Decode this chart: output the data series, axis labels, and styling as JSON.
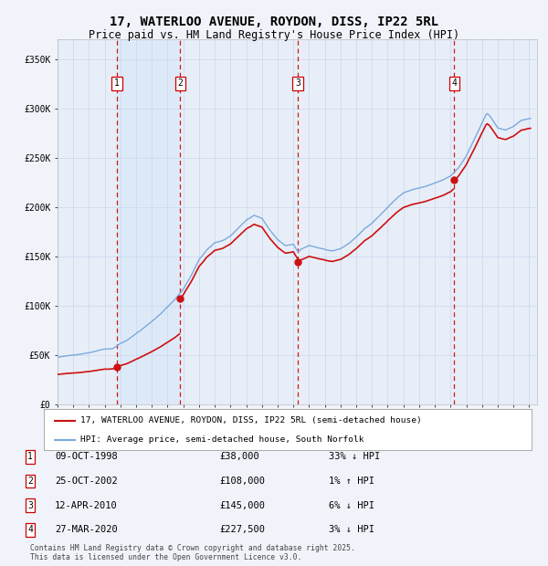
{
  "title": "17, WATERLOO AVENUE, ROYDON, DISS, IP22 5RL",
  "subtitle": "Price paid vs. HM Land Registry's House Price Index (HPI)",
  "title_fontsize": 10,
  "subtitle_fontsize": 8.5,
  "bg_color": "#f0f4fa",
  "plot_bg_color": "#e8eef8",
  "sale_dates_dec": [
    1998.77,
    2002.81,
    2010.27,
    2020.24
  ],
  "sale_prices": [
    38000,
    108000,
    145000,
    227500
  ],
  "sale_labels": [
    "1",
    "2",
    "3",
    "4"
  ],
  "annotations": [
    {
      "label": "1",
      "date": "09-OCT-1998",
      "price": "£38,000",
      "hpi": "33% ↓ HPI"
    },
    {
      "label": "2",
      "date": "25-OCT-2002",
      "price": "£108,000",
      "hpi": "1% ↑ HPI"
    },
    {
      "label": "3",
      "date": "12-APR-2010",
      "price": "£145,000",
      "hpi": "6% ↓ HPI"
    },
    {
      "label": "4",
      "date": "27-MAR-2020",
      "price": "£227,500",
      "hpi": "3% ↓ HPI"
    }
  ],
  "legend_line1": "17, WATERLOO AVENUE, ROYDON, DISS, IP22 5RL (semi-detached house)",
  "legend_line2": "HPI: Average price, semi-detached house, South Norfolk",
  "footer": "Contains HM Land Registry data © Crown copyright and database right 2025.\nThis data is licensed under the Open Government Licence v3.0.",
  "ylim": [
    0,
    370000
  ],
  "xlim_start": 1995.0,
  "xlim_end": 2025.5,
  "yticks": [
    0,
    50000,
    100000,
    150000,
    200000,
    250000,
    300000,
    350000
  ],
  "ytick_labels": [
    "£0",
    "£50K",
    "£100K",
    "£150K",
    "£200K",
    "£250K",
    "£300K",
    "£350K"
  ],
  "xticks": [
    1995,
    1996,
    1997,
    1998,
    1999,
    2000,
    2001,
    2002,
    2003,
    2004,
    2005,
    2006,
    2007,
    2008,
    2009,
    2010,
    2011,
    2012,
    2013,
    2014,
    2015,
    2016,
    2017,
    2018,
    2019,
    2020,
    2021,
    2022,
    2023,
    2024,
    2025
  ],
  "hpi_color": "#7aaadd",
  "price_color": "#cc1111",
  "vline_color": "#cc0000",
  "shade_color": "#dce8f8",
  "grid_color": "#c8d8ec"
}
